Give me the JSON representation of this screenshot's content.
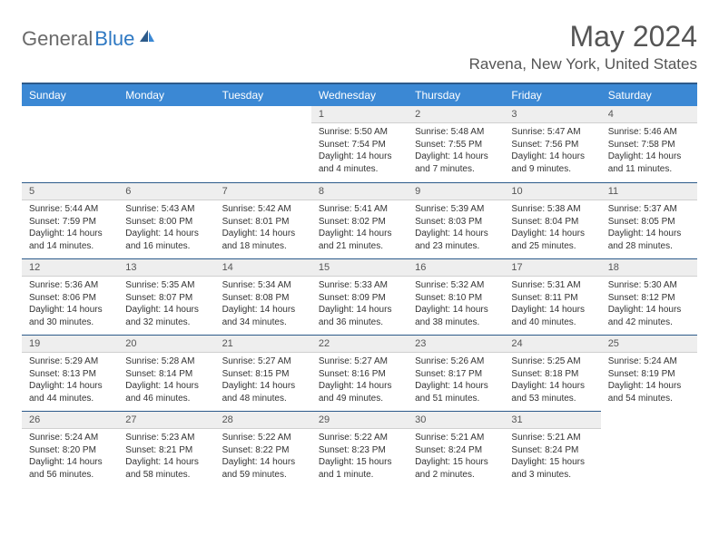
{
  "logo": {
    "part1": "General",
    "part2": "Blue"
  },
  "title": "May 2024",
  "location": "Ravena, New York, United States",
  "colors": {
    "header_bg": "#3b88d4",
    "header_border": "#2c5a8a",
    "daynum_bg": "#eeeeee",
    "logo_gray": "#6a6a6a",
    "logo_blue": "#2e78c2",
    "text": "#333333"
  },
  "weekdays": [
    "Sunday",
    "Monday",
    "Tuesday",
    "Wednesday",
    "Thursday",
    "Friday",
    "Saturday"
  ],
  "weeks": [
    [
      null,
      null,
      null,
      {
        "d": "1",
        "sr": "5:50 AM",
        "ss": "7:54 PM",
        "dl": "14 hours and 4 minutes."
      },
      {
        "d": "2",
        "sr": "5:48 AM",
        "ss": "7:55 PM",
        "dl": "14 hours and 7 minutes."
      },
      {
        "d": "3",
        "sr": "5:47 AM",
        "ss": "7:56 PM",
        "dl": "14 hours and 9 minutes."
      },
      {
        "d": "4",
        "sr": "5:46 AM",
        "ss": "7:58 PM",
        "dl": "14 hours and 11 minutes."
      }
    ],
    [
      {
        "d": "5",
        "sr": "5:44 AM",
        "ss": "7:59 PM",
        "dl": "14 hours and 14 minutes."
      },
      {
        "d": "6",
        "sr": "5:43 AM",
        "ss": "8:00 PM",
        "dl": "14 hours and 16 minutes."
      },
      {
        "d": "7",
        "sr": "5:42 AM",
        "ss": "8:01 PM",
        "dl": "14 hours and 18 minutes."
      },
      {
        "d": "8",
        "sr": "5:41 AM",
        "ss": "8:02 PM",
        "dl": "14 hours and 21 minutes."
      },
      {
        "d": "9",
        "sr": "5:39 AM",
        "ss": "8:03 PM",
        "dl": "14 hours and 23 minutes."
      },
      {
        "d": "10",
        "sr": "5:38 AM",
        "ss": "8:04 PM",
        "dl": "14 hours and 25 minutes."
      },
      {
        "d": "11",
        "sr": "5:37 AM",
        "ss": "8:05 PM",
        "dl": "14 hours and 28 minutes."
      }
    ],
    [
      {
        "d": "12",
        "sr": "5:36 AM",
        "ss": "8:06 PM",
        "dl": "14 hours and 30 minutes."
      },
      {
        "d": "13",
        "sr": "5:35 AM",
        "ss": "8:07 PM",
        "dl": "14 hours and 32 minutes."
      },
      {
        "d": "14",
        "sr": "5:34 AM",
        "ss": "8:08 PM",
        "dl": "14 hours and 34 minutes."
      },
      {
        "d": "15",
        "sr": "5:33 AM",
        "ss": "8:09 PM",
        "dl": "14 hours and 36 minutes."
      },
      {
        "d": "16",
        "sr": "5:32 AM",
        "ss": "8:10 PM",
        "dl": "14 hours and 38 minutes."
      },
      {
        "d": "17",
        "sr": "5:31 AM",
        "ss": "8:11 PM",
        "dl": "14 hours and 40 minutes."
      },
      {
        "d": "18",
        "sr": "5:30 AM",
        "ss": "8:12 PM",
        "dl": "14 hours and 42 minutes."
      }
    ],
    [
      {
        "d": "19",
        "sr": "5:29 AM",
        "ss": "8:13 PM",
        "dl": "14 hours and 44 minutes."
      },
      {
        "d": "20",
        "sr": "5:28 AM",
        "ss": "8:14 PM",
        "dl": "14 hours and 46 minutes."
      },
      {
        "d": "21",
        "sr": "5:27 AM",
        "ss": "8:15 PM",
        "dl": "14 hours and 48 minutes."
      },
      {
        "d": "22",
        "sr": "5:27 AM",
        "ss": "8:16 PM",
        "dl": "14 hours and 49 minutes."
      },
      {
        "d": "23",
        "sr": "5:26 AM",
        "ss": "8:17 PM",
        "dl": "14 hours and 51 minutes."
      },
      {
        "d": "24",
        "sr": "5:25 AM",
        "ss": "8:18 PM",
        "dl": "14 hours and 53 minutes."
      },
      {
        "d": "25",
        "sr": "5:24 AM",
        "ss": "8:19 PM",
        "dl": "14 hours and 54 minutes."
      }
    ],
    [
      {
        "d": "26",
        "sr": "5:24 AM",
        "ss": "8:20 PM",
        "dl": "14 hours and 56 minutes."
      },
      {
        "d": "27",
        "sr": "5:23 AM",
        "ss": "8:21 PM",
        "dl": "14 hours and 58 minutes."
      },
      {
        "d": "28",
        "sr": "5:22 AM",
        "ss": "8:22 PM",
        "dl": "14 hours and 59 minutes."
      },
      {
        "d": "29",
        "sr": "5:22 AM",
        "ss": "8:23 PM",
        "dl": "15 hours and 1 minute."
      },
      {
        "d": "30",
        "sr": "5:21 AM",
        "ss": "8:24 PM",
        "dl": "15 hours and 2 minutes."
      },
      {
        "d": "31",
        "sr": "5:21 AM",
        "ss": "8:24 PM",
        "dl": "15 hours and 3 minutes."
      },
      null
    ]
  ],
  "labels": {
    "sunrise": "Sunrise: ",
    "sunset": "Sunset: ",
    "daylight": "Daylight: "
  }
}
